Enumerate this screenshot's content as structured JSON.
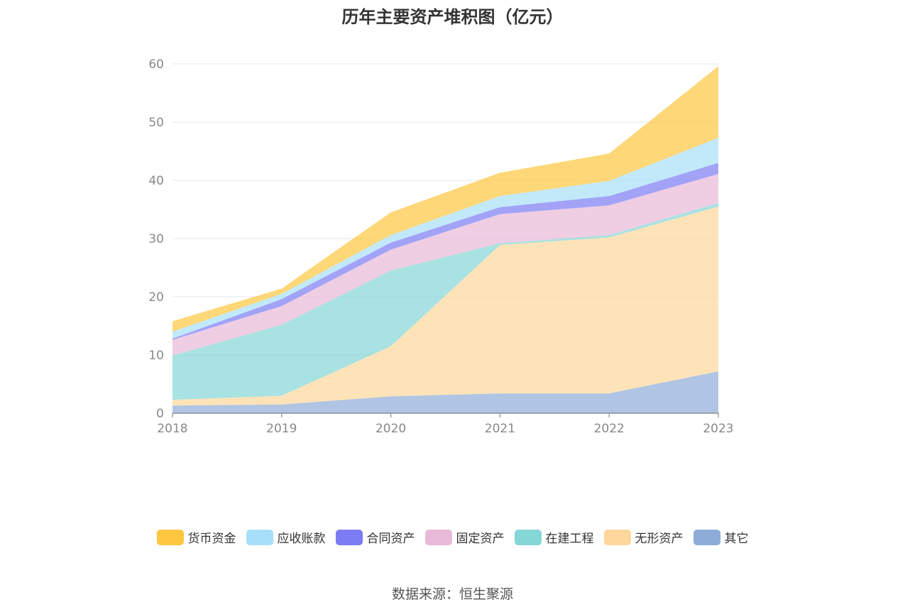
{
  "chart_data": {
    "type": "area",
    "title": "历年主要资产堆积图（亿元）",
    "xlabel": "",
    "ylabel": "",
    "x": [
      "2018",
      "2019",
      "2020",
      "2021",
      "2022",
      "2023"
    ],
    "ylim": [
      0,
      60
    ],
    "yticks": [
      "0",
      "10",
      "20",
      "30",
      "40",
      "50",
      "60"
    ],
    "grid": true,
    "legend_position": "bottom",
    "stacked": true,
    "series": [
      {
        "name": "其它",
        "color": "#8eacd8",
        "values": [
          1.3,
          1.5,
          2.9,
          3.4,
          3.4,
          7.2
        ]
      },
      {
        "name": "无形资产",
        "color": "#fdd79b",
        "values": [
          1.0,
          1.5,
          8.6,
          25.5,
          26.8,
          28.3
        ]
      },
      {
        "name": "在建工程",
        "color": "#85d6d6",
        "values": [
          7.6,
          12.2,
          13.0,
          0.3,
          0.4,
          0.6
        ]
      },
      {
        "name": "固定资产",
        "color": "#e8b9d9",
        "values": [
          2.7,
          3.2,
          3.6,
          5.0,
          5.1,
          5.0
        ]
      },
      {
        "name": "合同资产",
        "color": "#7b7cf3",
        "values": [
          0.2,
          1.2,
          1.2,
          1.2,
          1.6,
          1.9
        ]
      },
      {
        "name": "应收账款",
        "color": "#a8dff8",
        "values": [
          1.2,
          0.9,
          1.3,
          1.9,
          2.6,
          4.3
        ]
      },
      {
        "name": "货币资金",
        "color": "#fec63f",
        "values": [
          1.8,
          0.9,
          3.9,
          4.0,
          4.7,
          12.3
        ]
      }
    ]
  },
  "legend": {
    "items": [
      {
        "label": "货币资金",
        "color": "#fec63f"
      },
      {
        "label": "应收账款",
        "color": "#a8dff8"
      },
      {
        "label": "合同资产",
        "color": "#7b7cf3"
      },
      {
        "label": "固定资产",
        "color": "#e8b9d9"
      },
      {
        "label": "在建工程",
        "color": "#85d6d6"
      },
      {
        "label": "无形资产",
        "color": "#fdd79b"
      },
      {
        "label": "其它",
        "color": "#8eacd8"
      }
    ]
  },
  "source": "数据来源：恒生聚源"
}
